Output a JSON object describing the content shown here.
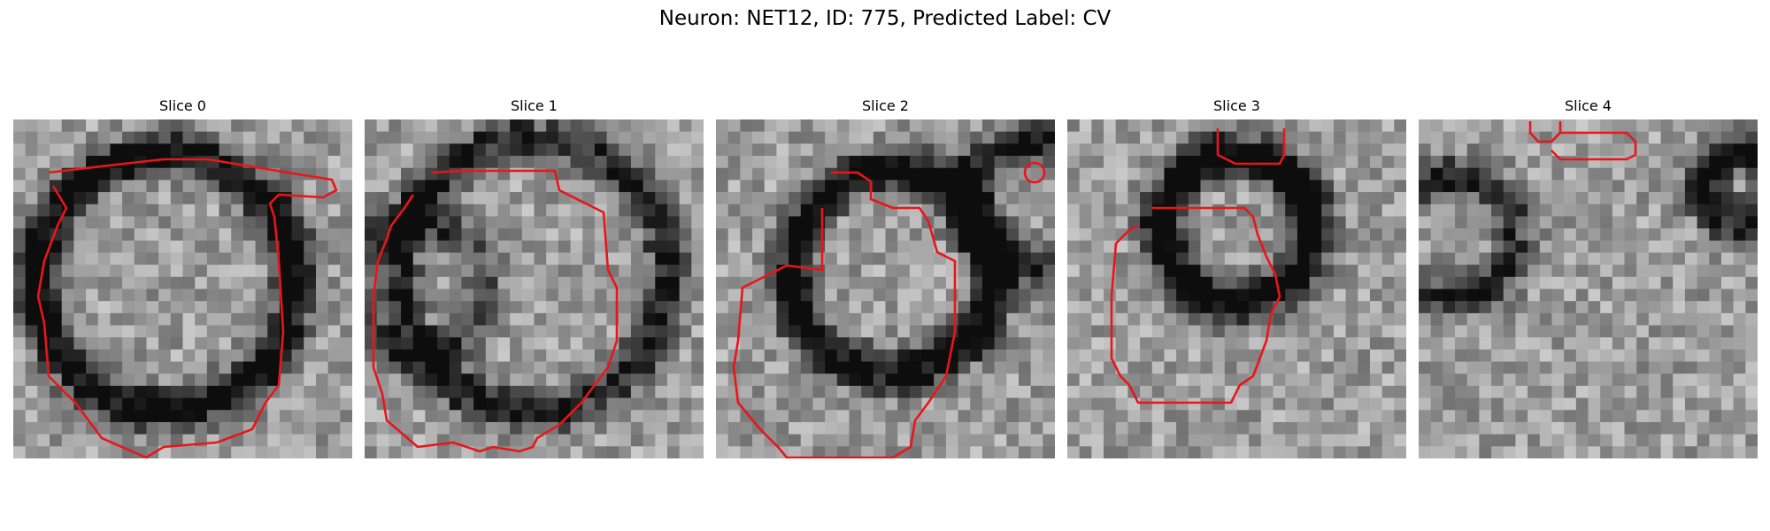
{
  "figure": {
    "title": "Neuron: NET12, ID: 775, Predicted Label: CV",
    "contour_color": "#e8161b"
  },
  "panels": [
    {
      "title": "Slice 0"
    },
    {
      "title": "Slice 1"
    },
    {
      "title": "Slice 2"
    },
    {
      "title": "Slice 3"
    },
    {
      "title": "Slice 4"
    }
  ]
}
